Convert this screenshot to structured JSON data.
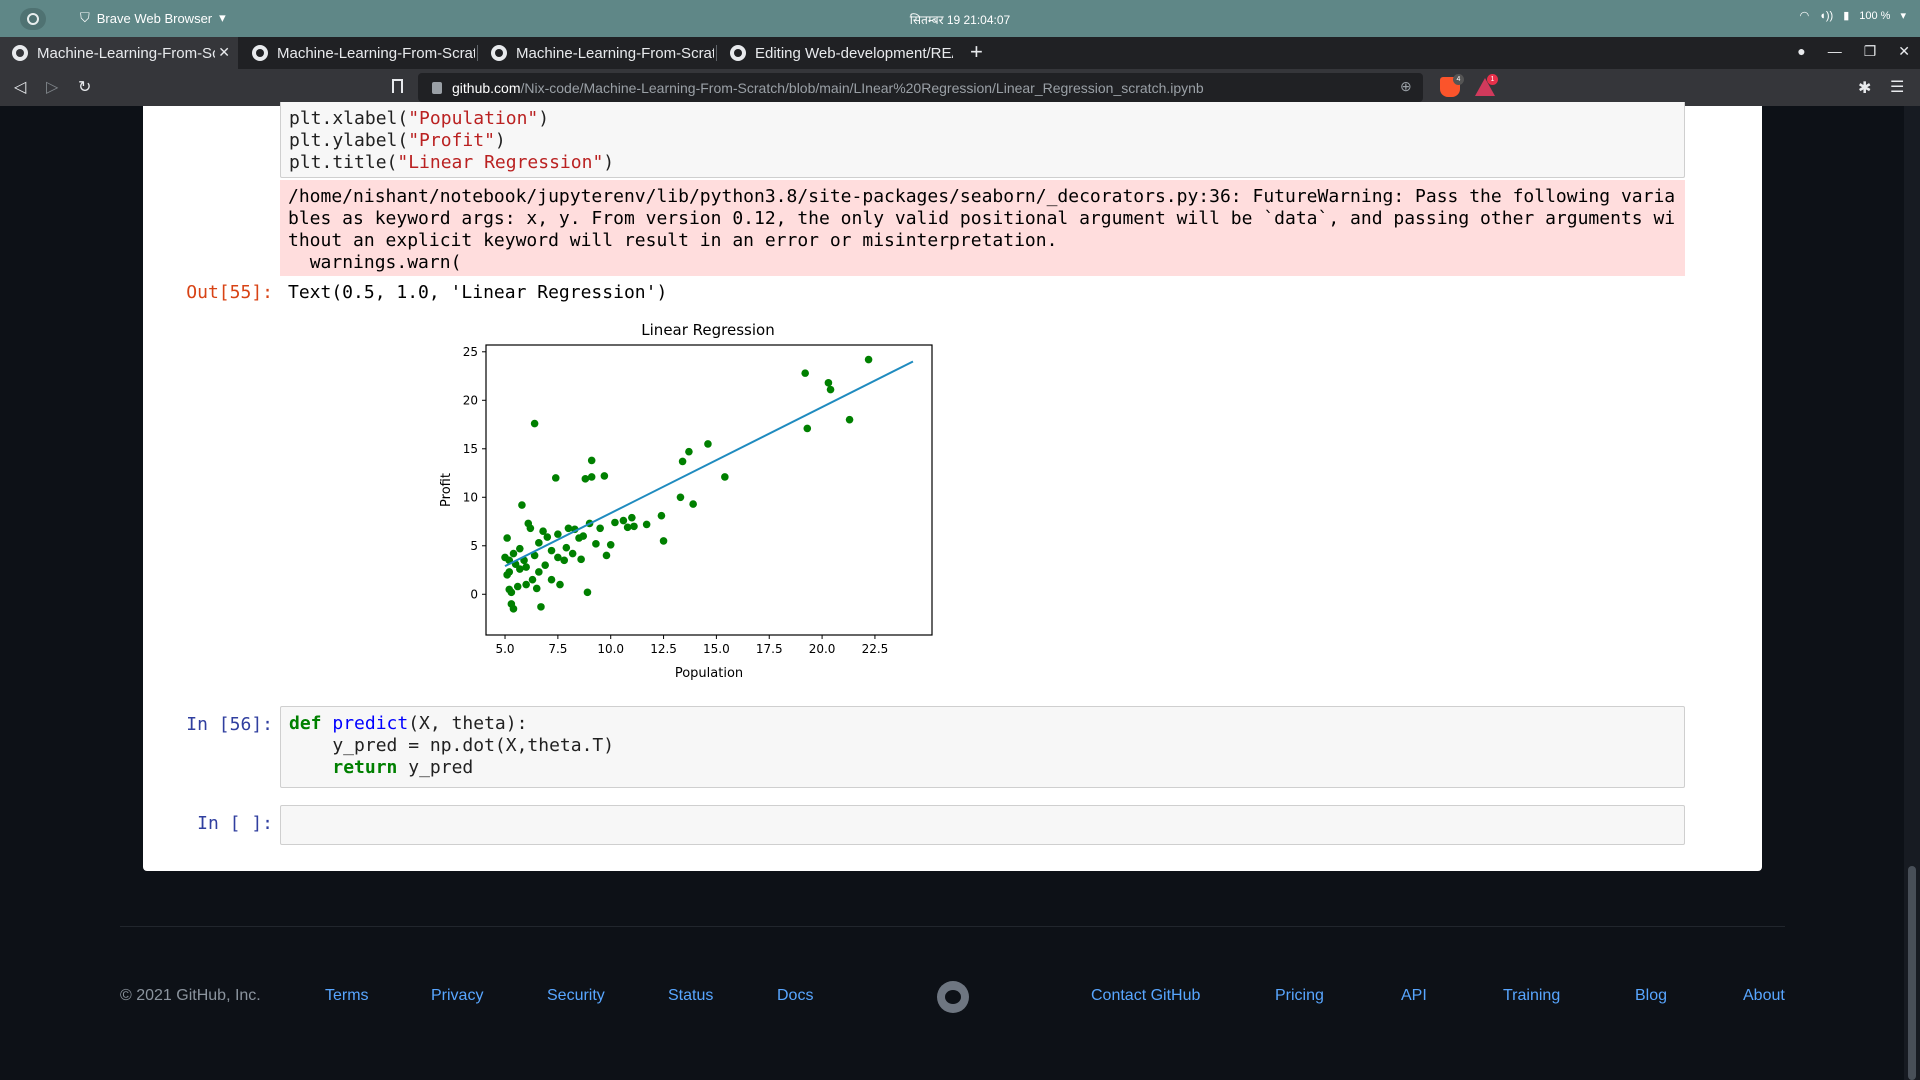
{
  "os": {
    "app_name": "Brave Web Browser",
    "clock": "सितम्बर 19  21:04:07",
    "battery": "100 %"
  },
  "tabs": [
    {
      "label": "Machine-Learning-From-Scratch"
    },
    {
      "label": "Machine-Learning-From-Scratch"
    },
    {
      "label": "Machine-Learning-From-Scratch"
    },
    {
      "label": "Editing Web-development/README"
    }
  ],
  "address": {
    "host": "github.com",
    "path": "/Nix-code/Machine-Learning-From-Scratch/blob/main/LInear%20Regression/Linear_Regression_scratch.ipynb",
    "shield_count": "4",
    "rewards_count": "1"
  },
  "notebook": {
    "code_top": {
      "l1_pre": "plt.xlabel(",
      "l1_str": "\"Population\"",
      "l1_post": ")",
      "l2_pre": "plt.ylabel(",
      "l2_str": "\"Profit\"",
      "l2_post": ")",
      "l3_pre": "plt.title(",
      "l3_str": "\"Linear Regression\"",
      "l3_post": ")"
    },
    "stderr": "/home/nishant/notebook/jupyterenv/lib/python3.8/site-packages/seaborn/_decorators.py:36: FutureWarning: Pass the following variables as keyword args: x, y. From version 0.12, the only valid positional argument will be `data`, and passing other arguments without an explicit keyword will result in an error or misinterpretation.\n  warnings.warn(",
    "out_prompt": "Out[55]:",
    "out_text": "Text(0.5, 1.0, 'Linear Regression')",
    "predict_prompt": "In [56]:",
    "predict": {
      "def": "def",
      "fname": "predict",
      "sig": "(X, theta):",
      "l2": "    y_pred = np.dot(X,theta.T)",
      "ret": "return",
      "ret_rest": " y_pred"
    },
    "empty_prompt": "In [ ]:"
  },
  "chart_data": {
    "type": "scatter",
    "title": "Linear Regression",
    "xlabel": "Population",
    "ylabel": "Profit",
    "xlim": [
      4.1,
      25.2
    ],
    "ylim": [
      -4.2,
      25.7
    ],
    "xticks": [
      "5.0",
      "7.5",
      "10.0",
      "12.5",
      "15.0",
      "17.5",
      "20.0",
      "22.5"
    ],
    "xtick_values": [
      5.0,
      7.5,
      10.0,
      12.5,
      15.0,
      17.5,
      20.0,
      22.5
    ],
    "yticks": [
      "0",
      "5",
      "10",
      "15",
      "20",
      "25"
    ],
    "ytick_values": [
      0,
      5,
      10,
      15,
      20,
      25
    ],
    "point_color": "#008000",
    "line_color": "#1f8bbf",
    "points": [
      [
        5.0,
        3.8
      ],
      [
        5.1,
        2.0
      ],
      [
        5.1,
        5.8
      ],
      [
        5.2,
        0.5
      ],
      [
        5.2,
        2.3
      ],
      [
        5.2,
        3.5
      ],
      [
        5.3,
        -1.0
      ],
      [
        5.3,
        0.2
      ],
      [
        5.4,
        -1.5
      ],
      [
        5.4,
        4.2
      ],
      [
        5.5,
        3.1
      ],
      [
        5.6,
        0.8
      ],
      [
        5.7,
        2.6
      ],
      [
        5.7,
        4.7
      ],
      [
        5.8,
        9.2
      ],
      [
        5.9,
        3.5
      ],
      [
        6.0,
        1.0
      ],
      [
        6.0,
        2.8
      ],
      [
        6.1,
        7.3
      ],
      [
        6.2,
        6.8
      ],
      [
        6.3,
        1.5
      ],
      [
        6.4,
        17.6
      ],
      [
        6.4,
        4.0
      ],
      [
        6.5,
        0.6
      ],
      [
        6.6,
        2.3
      ],
      [
        6.6,
        5.3
      ],
      [
        6.7,
        -1.3
      ],
      [
        6.8,
        6.5
      ],
      [
        6.9,
        3.0
      ],
      [
        7.0,
        5.9
      ],
      [
        7.2,
        1.5
      ],
      [
        7.2,
        4.5
      ],
      [
        7.4,
        12.0
      ],
      [
        7.5,
        3.8
      ],
      [
        7.5,
        6.2
      ],
      [
        7.6,
        1.0
      ],
      [
        7.8,
        3.5
      ],
      [
        7.9,
        4.8
      ],
      [
        8.0,
        6.8
      ],
      [
        8.2,
        4.2
      ],
      [
        8.3,
        6.7
      ],
      [
        8.5,
        5.8
      ],
      [
        8.6,
        3.6
      ],
      [
        8.7,
        6.0
      ],
      [
        8.8,
        11.9
      ],
      [
        8.9,
        0.2
      ],
      [
        9.0,
        7.3
      ],
      [
        9.1,
        13.8
      ],
      [
        9.1,
        12.1
      ],
      [
        9.3,
        5.2
      ],
      [
        9.5,
        6.8
      ],
      [
        9.7,
        12.2
      ],
      [
        9.8,
        4.0
      ],
      [
        10.0,
        5.1
      ],
      [
        10.2,
        7.4
      ],
      [
        10.6,
        7.6
      ],
      [
        10.8,
        6.9
      ],
      [
        11.0,
        7.9
      ],
      [
        11.1,
        7.0
      ],
      [
        11.7,
        7.2
      ],
      [
        12.4,
        8.1
      ],
      [
        12.5,
        5.5
      ],
      [
        13.3,
        10.0
      ],
      [
        13.4,
        13.7
      ],
      [
        13.7,
        14.7
      ],
      [
        13.9,
        9.3
      ],
      [
        14.6,
        15.5
      ],
      [
        15.4,
        12.1
      ],
      [
        19.2,
        22.8
      ],
      [
        19.3,
        17.1
      ],
      [
        20.3,
        21.8
      ],
      [
        20.4,
        21.1
      ],
      [
        21.3,
        18.0
      ],
      [
        22.2,
        24.2
      ]
    ],
    "line": [
      [
        5.0,
        2.9
      ],
      [
        24.3,
        24.0
      ]
    ]
  },
  "footer": {
    "copyright": "© 2021 GitHub, Inc.",
    "left_links": [
      "Terms",
      "Privacy",
      "Security",
      "Status",
      "Docs"
    ],
    "right_links": [
      "Contact GitHub",
      "Pricing",
      "API",
      "Training",
      "Blog",
      "About"
    ]
  }
}
